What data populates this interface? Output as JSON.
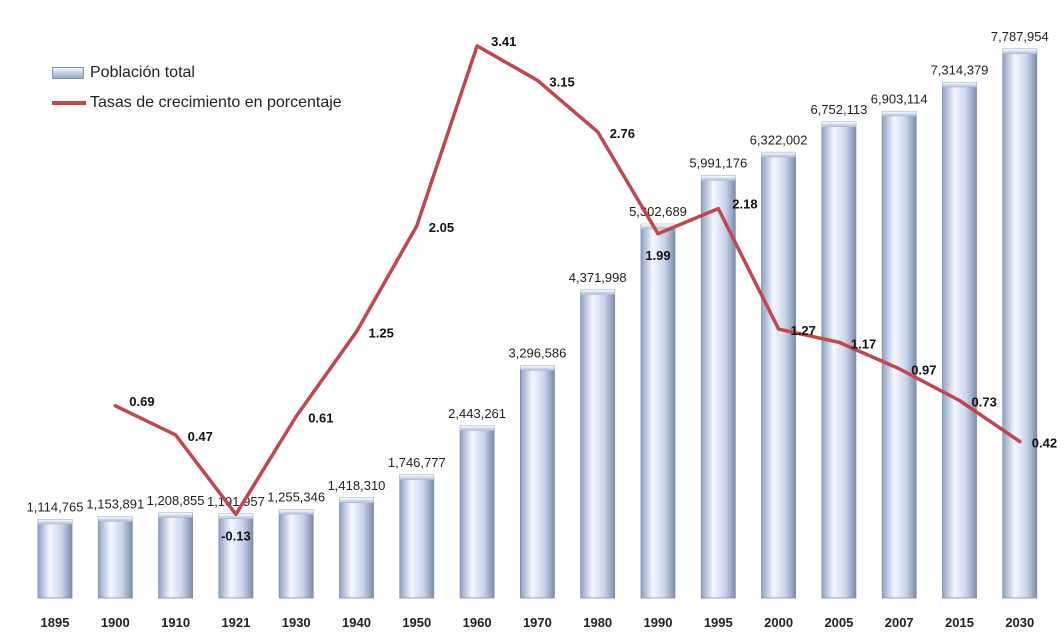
{
  "chart_data": {
    "type": "bar",
    "title": "",
    "xlabel": "",
    "ylabel": "",
    "categories": [
      "1895",
      "1900",
      "1910",
      "1921",
      "1930",
      "1940",
      "1950",
      "1960",
      "1970",
      "1980",
      "1990",
      "1995",
      "2000",
      "2005",
      "2007",
      "2015",
      "2030"
    ],
    "series": [
      {
        "name": "Población total",
        "kind": "bar",
        "values": [
          1114765,
          1153891,
          1208855,
          1191957,
          1255346,
          1418310,
          1746777,
          2443261,
          3296586,
          4371998,
          5302689,
          5991176,
          6322002,
          6752113,
          6903114,
          7314379,
          7787954
        ],
        "labels": [
          "1,114,765",
          "1,153,891",
          "1,208,855",
          "1,191,957",
          "1,255,346",
          "1,418,310",
          "1,746,777",
          "2,443,261",
          "3,296,586",
          "4,371,998",
          "5,302,689",
          "5,991,176",
          "6,322,002",
          "6,752,113",
          "6,903,114",
          "7,314,379",
          "7,787,954"
        ]
      },
      {
        "name": "Tasas de crecimiento en porcentaje",
        "kind": "line",
        "values": [
          null,
          0.69,
          0.47,
          -0.13,
          0.61,
          1.25,
          2.05,
          3.41,
          3.15,
          2.76,
          1.99,
          2.18,
          1.27,
          1.17,
          0.97,
          0.73,
          0.42
        ],
        "labels": [
          "",
          "0.69",
          "0.47",
          "-0.13",
          "0.61",
          "1.25",
          "2.05",
          "3.41",
          "3.15",
          "2.76",
          "1.99",
          "2.18",
          "1.27",
          "1.17",
          "0.97",
          "0.73",
          "0.42"
        ]
      }
    ],
    "ylim": [
      0,
      8000000
    ],
    "y2lim": [
      -0.4,
      3.5
    ],
    "grid": false,
    "legend_position": "top-left",
    "colors": {
      "bar_light": "#f4f7fd",
      "bar_mid": "#c9d4ea",
      "bar_dark": "#8fa1c5",
      "bar_edge": "#7d8cab",
      "line": "#c0484d",
      "negative_label": "#e0191c"
    }
  }
}
